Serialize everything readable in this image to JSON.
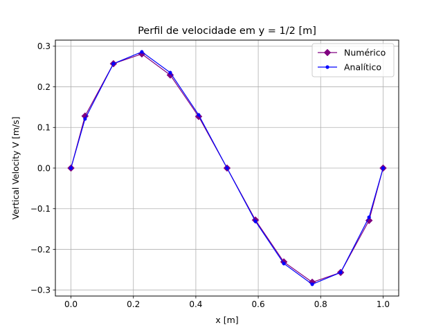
{
  "chart_data": {
    "type": "line",
    "title": "Perfil de velocidade em y = 1/2 [m]",
    "xlabel": "x [m]",
    "ylabel": "Vertical Velocity V [m/s]",
    "xlim": [
      -0.05,
      1.05
    ],
    "ylim": [
      -0.315,
      0.315
    ],
    "xticks": [
      "0.0",
      "0.2",
      "0.4",
      "0.6",
      "0.8",
      "1.0"
    ],
    "yticks": [
      "-0.3",
      "-0.2",
      "-0.1",
      "0.0",
      "0.1",
      "0.2",
      "0.3"
    ],
    "grid": true,
    "legend": "upper right",
    "series": [
      {
        "name": "Numérico",
        "color": "#800080",
        "marker": "diamond",
        "points": [
          [
            0.0,
            0.0
          ],
          [
            0.045,
            0.128
          ],
          [
            0.136,
            0.257
          ],
          [
            0.227,
            0.281
          ],
          [
            0.318,
            0.229
          ],
          [
            0.409,
            0.127
          ],
          [
            0.5,
            0.0
          ],
          [
            0.591,
            -0.128
          ],
          [
            0.682,
            -0.231
          ],
          [
            0.773,
            -0.281
          ],
          [
            0.864,
            -0.257
          ],
          [
            0.955,
            -0.129
          ],
          [
            1.0,
            0.0
          ]
        ]
      },
      {
        "name": "Analítico",
        "color": "#0000ff",
        "marker": "dot",
        "points": [
          [
            0.0,
            0.0
          ],
          [
            0.045,
            0.121
          ],
          [
            0.136,
            0.257
          ],
          [
            0.227,
            0.286
          ],
          [
            0.318,
            0.235
          ],
          [
            0.409,
            0.131
          ],
          [
            0.5,
            0.0
          ],
          [
            0.591,
            -0.131
          ],
          [
            0.682,
            -0.235
          ],
          [
            0.773,
            -0.286
          ],
          [
            0.864,
            -0.257
          ],
          [
            0.955,
            -0.121
          ],
          [
            1.0,
            0.0
          ]
        ]
      }
    ]
  }
}
